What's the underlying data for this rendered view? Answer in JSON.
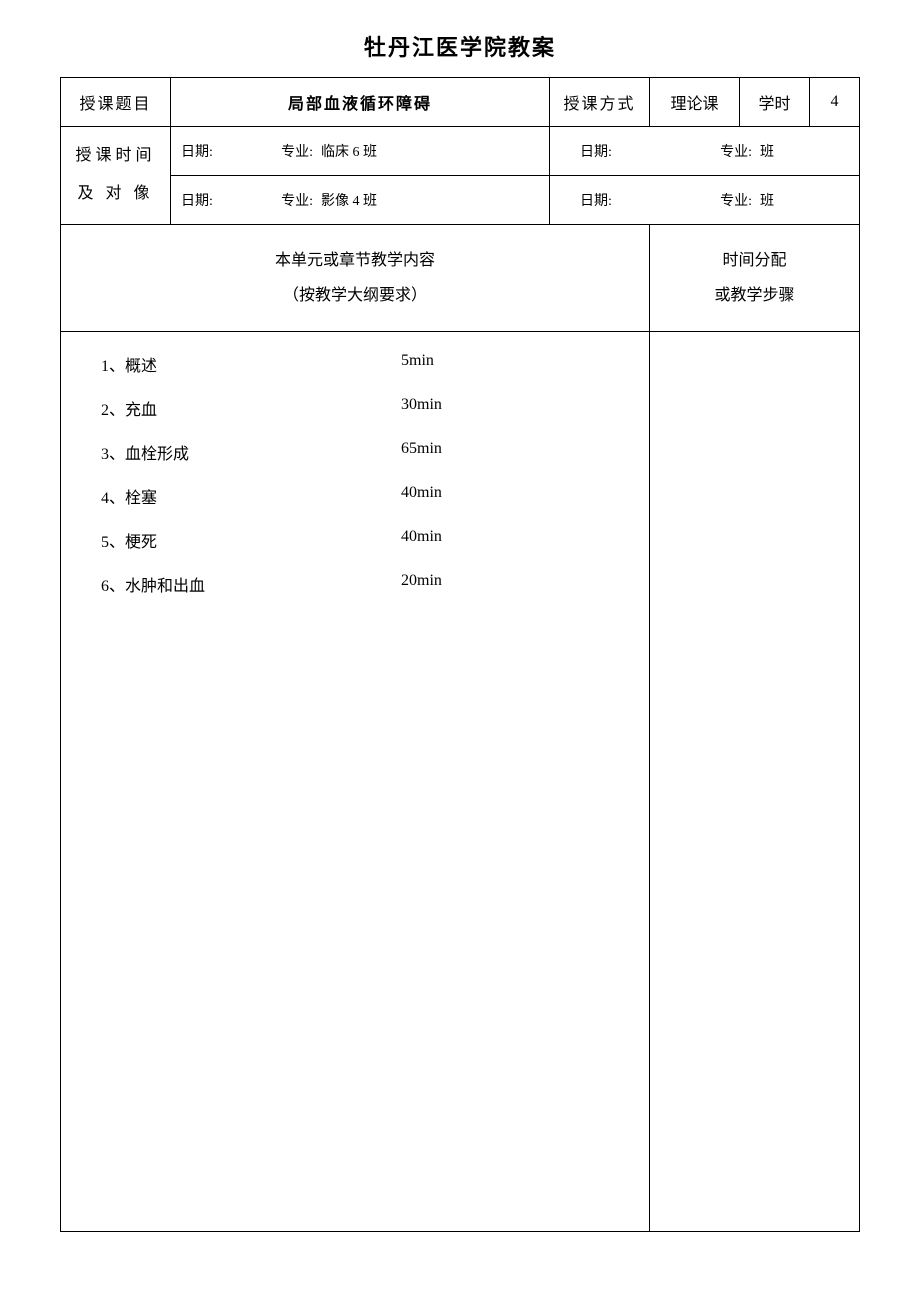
{
  "page": {
    "title": "牡丹江医学院教案",
    "background_color": "#ffffff",
    "text_color": "#000000",
    "border_color": "#000000"
  },
  "header_row": {
    "topic_label": "授课题目",
    "topic_value": "局部血液循环障碍",
    "method_label": "授课方式",
    "method_value": "理论课",
    "hours_label": "学时",
    "hours_value": "4"
  },
  "schedule": {
    "side_label_line1": "授课时间",
    "side_label_line2": "及 对 像",
    "date_label": "日期:",
    "major_label": "专业:",
    "class_suffix": "班",
    "rows": [
      {
        "date": "",
        "major_class_left": "临床 6 班",
        "date_right": "",
        "major_class_right": "班"
      },
      {
        "date": "",
        "major_class_left": "影像 4 班",
        "date_right": "",
        "major_class_right": "班"
      }
    ]
  },
  "section_headers": {
    "content_line1": "本单元或章节教学内容",
    "content_line2": "（按教学大纲要求）",
    "steps_line1": "时间分配",
    "steps_line2": "或教学步骤"
  },
  "content_items": [
    {
      "label": "1、概述",
      "time": "5min"
    },
    {
      "label": "2、充血",
      "time": "30min"
    },
    {
      "label": "3、血栓形成",
      "time": "65min"
    },
    {
      "label": "4、栓塞",
      "time": "40min"
    },
    {
      "label": "5、梗死",
      "time": "40min"
    },
    {
      "label": "6、水肿和出血",
      "time": "20min"
    }
  ]
}
